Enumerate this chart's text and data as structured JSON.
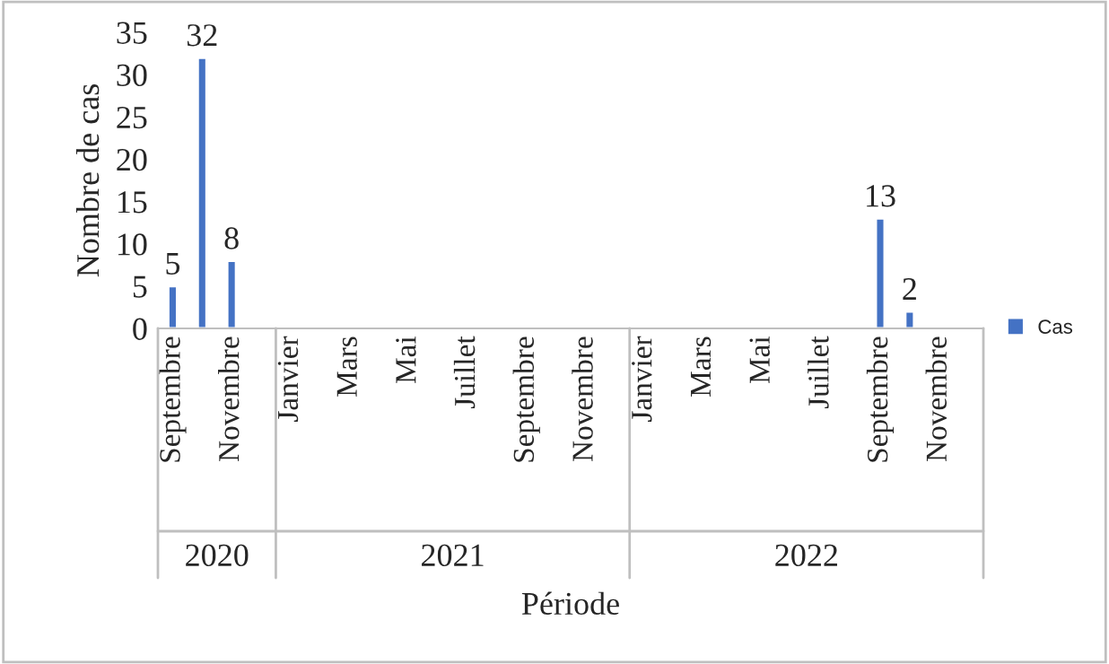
{
  "chart_data": {
    "type": "bar",
    "categories": [
      "Septembre",
      null,
      "Novembre",
      null,
      "Janvier",
      null,
      "Mars",
      null,
      "Mai",
      null,
      "Juillet",
      null,
      "Septembre",
      null,
      "Novembre",
      null,
      "Janvier",
      null,
      "Mars",
      null,
      "Mai",
      null,
      "Juillet",
      null,
      "Septembre",
      null,
      "Novembre",
      null
    ],
    "series": [
      {
        "name": "Cas",
        "color": "#4472c4",
        "values": [
          5,
          32,
          8,
          null,
          null,
          null,
          null,
          null,
          null,
          null,
          null,
          null,
          null,
          null,
          null,
          null,
          null,
          null,
          null,
          null,
          null,
          null,
          null,
          null,
          13,
          2,
          null,
          null
        ],
        "value_labels": [
          "5",
          "32",
          "8",
          null,
          null,
          null,
          null,
          null,
          null,
          null,
          null,
          null,
          null,
          null,
          null,
          null,
          null,
          null,
          null,
          null,
          null,
          null,
          null,
          null,
          "13",
          "2",
          null,
          null
        ]
      }
    ],
    "xlabel": "Période",
    "ylabel": "Nombre de cas",
    "ylim": [
      0,
      35
    ],
    "yticks": [
      0,
      5,
      10,
      15,
      20,
      25,
      30,
      35
    ],
    "grid": false,
    "legend": "right",
    "annotations": [
      "2020",
      "2021",
      "2022"
    ]
  }
}
